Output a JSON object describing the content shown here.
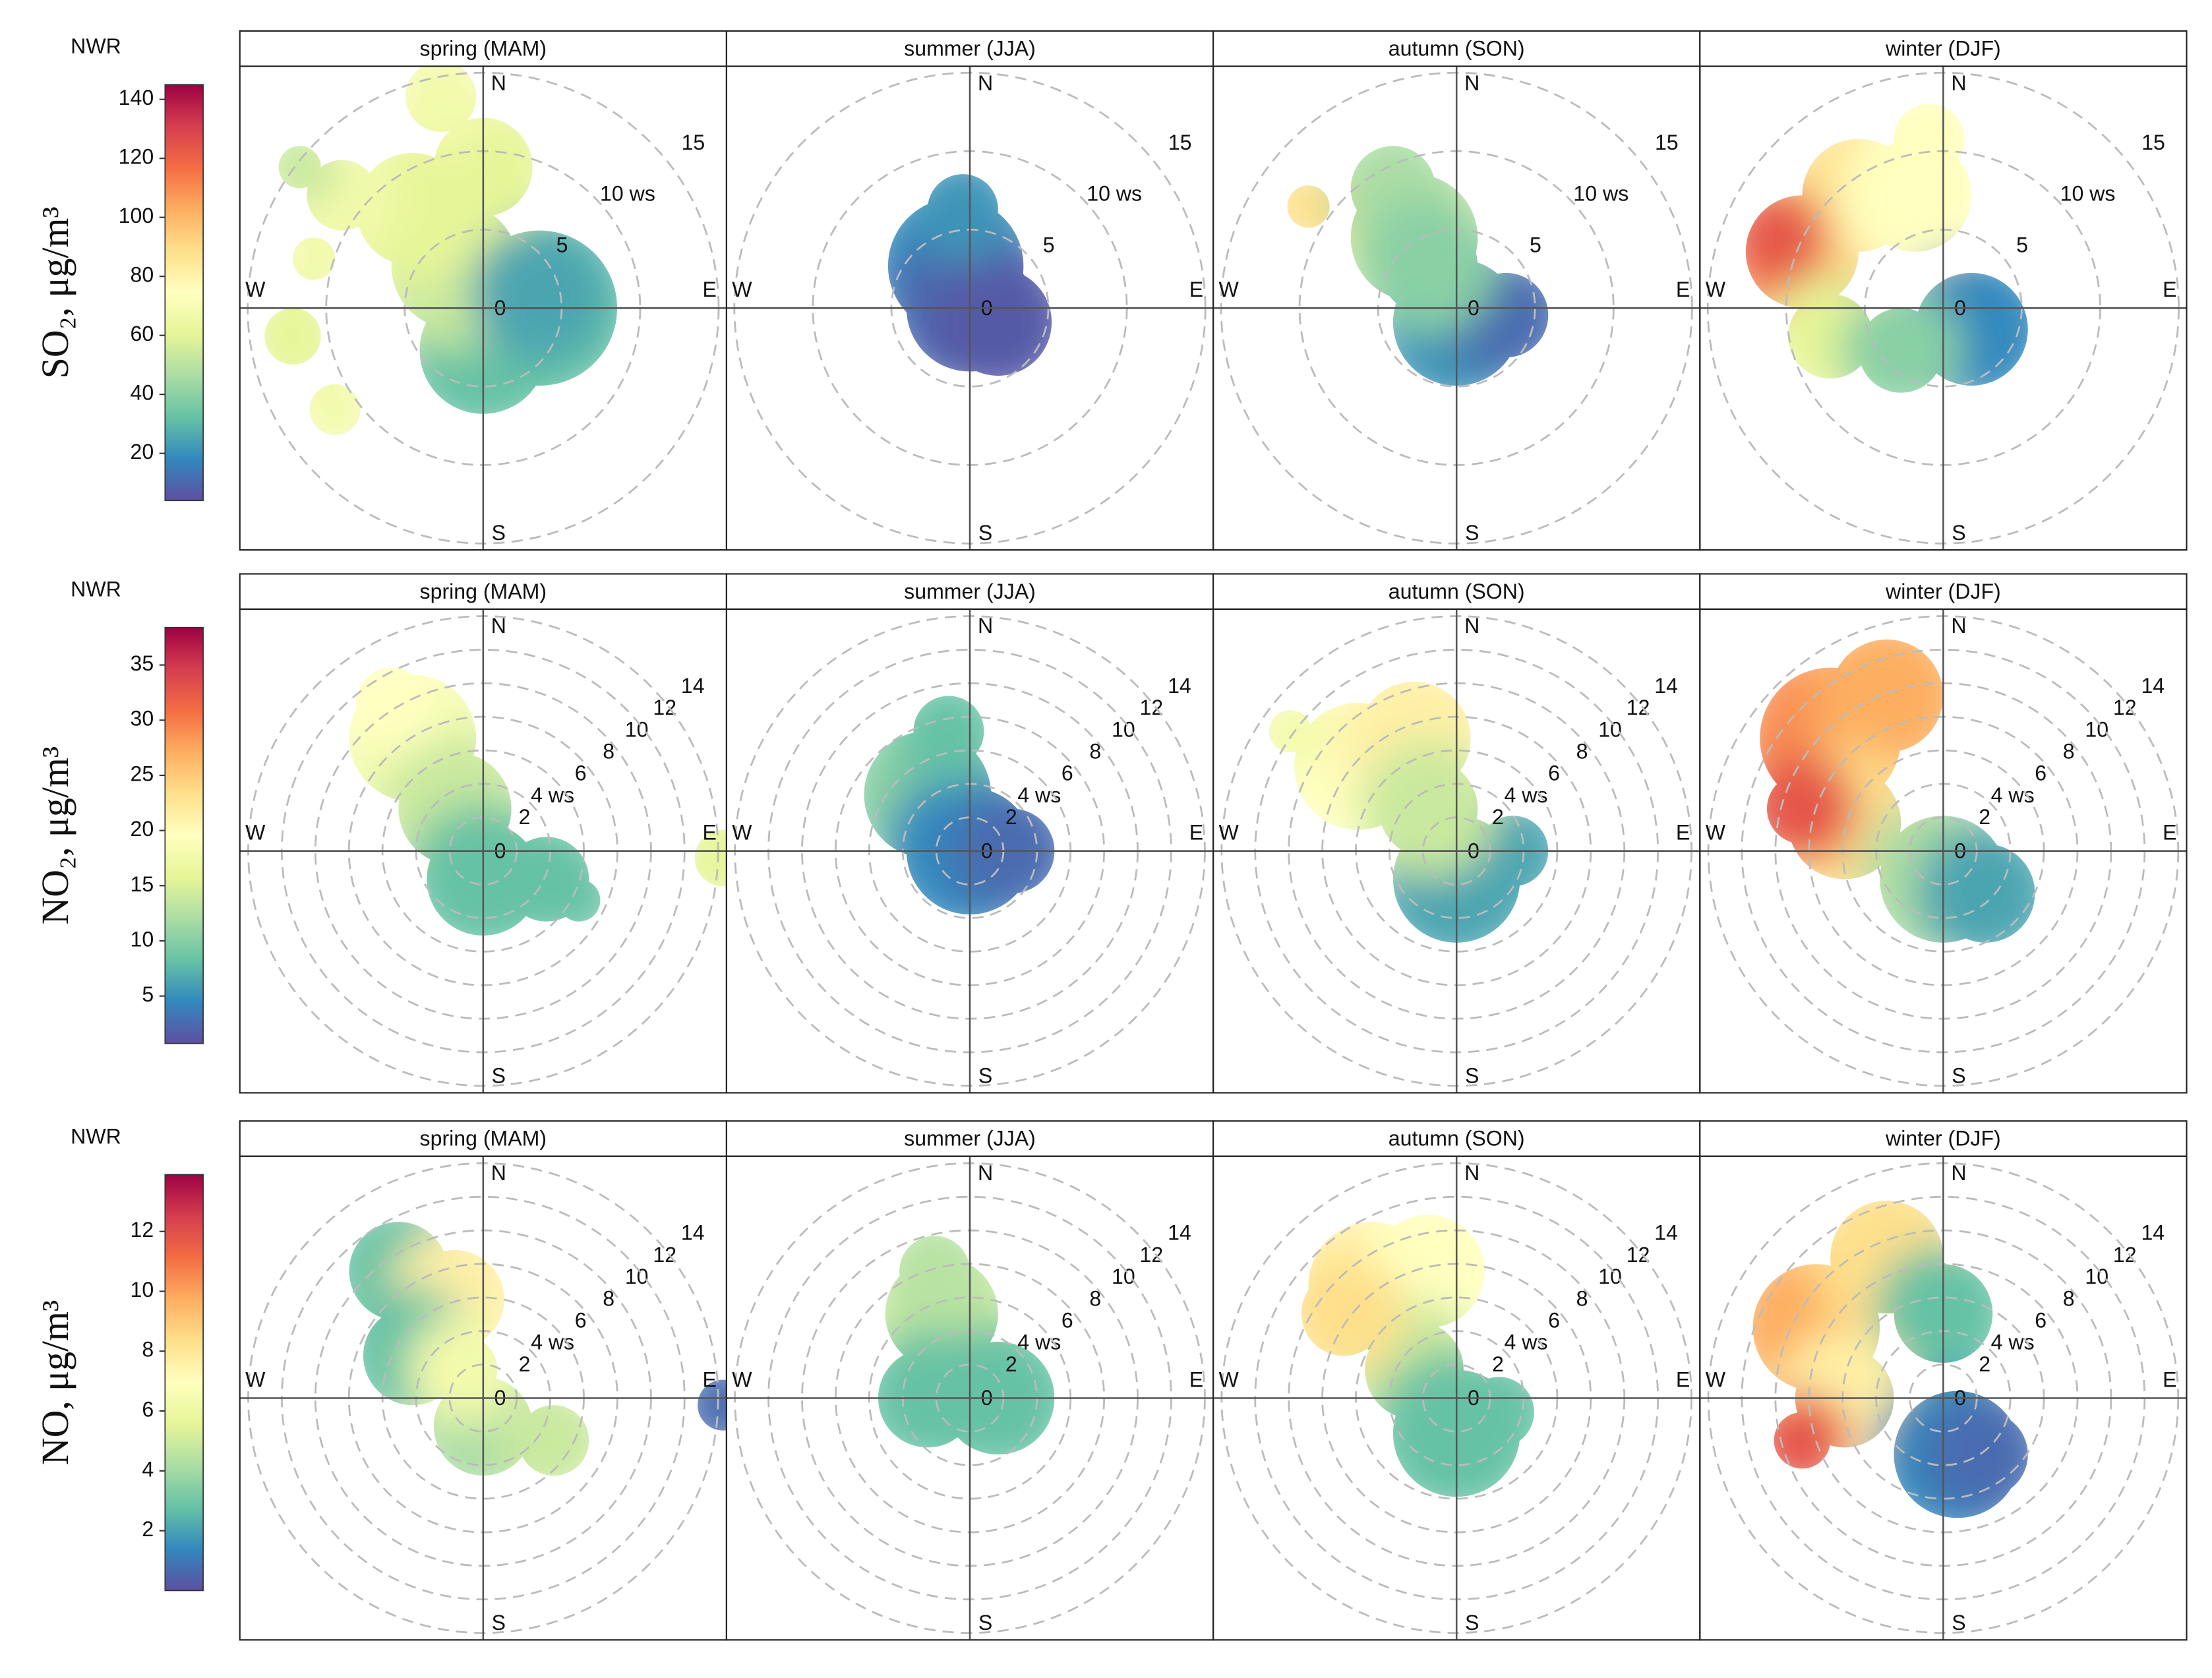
{
  "chart_data": [
    {
      "type": "polar",
      "site": "NWR",
      "title": "SO₂, μg/m³",
      "panels": [
        "spring (MAM)",
        "summer (JJA)",
        "autumn (SON)",
        "winter (DJF)"
      ],
      "directions": [
        "N",
        "E",
        "S",
        "W"
      ],
      "rlim": [
        0,
        15.5
      ],
      "rticks": [
        0,
        5,
        {
          "value": 10,
          "label": "10 ws"
        },
        15
      ],
      "clim": [
        4,
        145
      ],
      "cticks": [
        20,
        40,
        60,
        80,
        100,
        120,
        140
      ],
      "colors": [
        "#5E4FA2",
        "#3288BD",
        "#66C2A5",
        "#ABDDA4",
        "#E6F598",
        "#FFFFBF",
        "#FEE08B",
        "#FDAE61",
        "#F46D43",
        "#D53E4F",
        "#9E0142"
      ]
    },
    {
      "type": "polar",
      "site": "NWR",
      "title": "NO₂, μg/m³",
      "panels": [
        "spring (MAM)",
        "summer (JJA)",
        "autumn (SON)",
        "winter (DJF)"
      ],
      "directions": [
        "N",
        "E",
        "S",
        "W"
      ],
      "rlim": [
        0,
        14.5
      ],
      "rticks": [
        0,
        2,
        {
          "value": 4,
          "label": "4 ws"
        },
        6,
        8,
        10,
        12,
        14
      ],
      "clim": [
        0.7,
        38.4
      ],
      "cticks": [
        5,
        10,
        15,
        20,
        25,
        30,
        35
      ],
      "colors": [
        "#5E4FA2",
        "#3288BD",
        "#66C2A5",
        "#ABDDA4",
        "#E6F598",
        "#FFFFBF",
        "#FEE08B",
        "#FDAE61",
        "#F46D43",
        "#D53E4F",
        "#9E0142"
      ]
    },
    {
      "type": "polar",
      "site": "NWR",
      "title": "NO, μg/m³",
      "panels": [
        "spring (MAM)",
        "summer (JJA)",
        "autumn (SON)",
        "winter (DJF)"
      ],
      "directions": [
        "N",
        "E",
        "S",
        "W"
      ],
      "rlim": [
        0,
        14.5
      ],
      "rticks": [
        0,
        2,
        {
          "value": 4,
          "label": "4 ws"
        },
        6,
        8,
        10,
        12,
        14
      ],
      "clim": [
        0,
        13.9
      ],
      "cticks": [
        2,
        4,
        6,
        8,
        10,
        12
      ],
      "colors": [
        "#5E4FA2",
        "#3288BD",
        "#66C2A5",
        "#ABDDA4",
        "#E6F598",
        "#FFFFBF",
        "#FEE08B",
        "#FDAE61",
        "#F46D43",
        "#D53E4F",
        "#9E0142"
      ]
    }
  ]
}
